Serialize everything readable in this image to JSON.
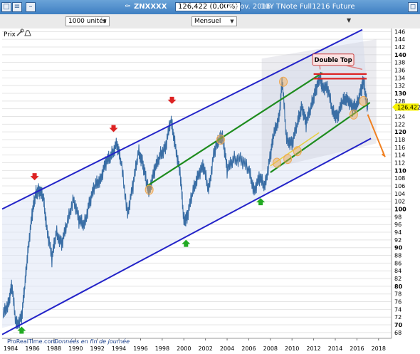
{
  "window": {
    "symbol": "ZNXXXX",
    "price": "126,422 (0,00%)",
    "date": "15 nov. 2016",
    "instrument": "10Y TNote Full1216 Future"
  },
  "toolbar": {
    "units": "1000 unités",
    "period": "Mensuel"
  },
  "chart_data": {
    "type": "line",
    "title": "",
    "legend_label": "Prix",
    "last_price_label": "126,422",
    "annotation": "Double Top",
    "footer": {
      "brand": "ProRealTime.com",
      "note": "Données en fin de journée"
    },
    "xlabel": "",
    "ylabel": "",
    "xlim": [
      1983.2,
      2019.2
    ],
    "ylim": [
      66.5,
      146.8
    ],
    "x_ticks": [
      "1984",
      "1986",
      "1988",
      "1990",
      "1992",
      "1994",
      "1996",
      "1998",
      "2000",
      "2002",
      "2004",
      "2006",
      "2008",
      "2010",
      "2012",
      "2014",
      "2016",
      "2018"
    ],
    "y_ticks": [
      "146",
      "144",
      "142",
      "140",
      "138",
      "136",
      "134",
      "132",
      "130",
      "128",
      "126",
      "124",
      "122",
      "120",
      "118",
      "116",
      "114",
      "112",
      "110",
      "108",
      "106",
      "104",
      "102",
      "100",
      "98",
      "96",
      "94",
      "92",
      "90",
      "88",
      "86",
      "84",
      "82",
      "80",
      "78",
      "76",
      "74",
      "72",
      "70",
      "68"
    ],
    "bold_y_ticks": [
      "140",
      "130",
      "120",
      "110",
      "100",
      "90",
      "80",
      "70"
    ],
    "grid": true,
    "series": [
      {
        "points": [
          [
            1983.3,
            72.5
          ],
          [
            1983.8,
            76
          ],
          [
            1984.1,
            80
          ],
          [
            1984.5,
            70
          ],
          [
            1985.0,
            72
          ],
          [
            1985.3,
            80
          ],
          [
            1985.6,
            90
          ],
          [
            1986.0,
            99
          ],
          [
            1986.3,
            104
          ],
          [
            1986.6,
            105
          ],
          [
            1987.0,
            103
          ],
          [
            1987.3,
            96
          ],
          [
            1987.8,
            87
          ],
          [
            1988.2,
            94
          ],
          [
            1988.7,
            91
          ],
          [
            1989.2,
            96
          ],
          [
            1989.8,
            103
          ],
          [
            1990.3,
            97
          ],
          [
            1990.8,
            96
          ],
          [
            1991.3,
            102
          ],
          [
            1991.8,
            106
          ],
          [
            1992.3,
            108
          ],
          [
            1992.8,
            112
          ],
          [
            1993.3,
            114
          ],
          [
            1993.8,
            117
          ],
          [
            1994.2,
            112
          ],
          [
            1994.8,
            99
          ],
          [
            1995.3,
            106
          ],
          [
            1995.8,
            115
          ],
          [
            1996.2,
            112
          ],
          [
            1996.6,
            106
          ],
          [
            1996.8,
            105
          ],
          [
            1997.3,
            110
          ],
          [
            1997.8,
            114
          ],
          [
            1998.3,
            116
          ],
          [
            1998.8,
            123
          ],
          [
            1999.2,
            117
          ],
          [
            1999.7,
            108
          ],
          [
            2000.0,
            97
          ],
          [
            2000.3,
            98
          ],
          [
            2000.8,
            104
          ],
          [
            2001.3,
            109
          ],
          [
            2001.8,
            111
          ],
          [
            2002.3,
            105
          ],
          [
            2002.8,
            115
          ],
          [
            2003.3,
            118
          ],
          [
            2003.6,
            119
          ],
          [
            2004.0,
            110
          ],
          [
            2004.6,
            113
          ],
          [
            2005.3,
            113
          ],
          [
            2006.0,
            110
          ],
          [
            2006.5,
            105
          ],
          [
            2007.0,
            108
          ],
          [
            2007.5,
            106
          ],
          [
            2008.0,
            114
          ],
          [
            2008.3,
            119
          ],
          [
            2008.8,
            124
          ],
          [
            2009.1,
            133
          ],
          [
            2009.5,
            118
          ],
          [
            2010.0,
            117
          ],
          [
            2010.5,
            122
          ],
          [
            2010.9,
            127
          ],
          [
            2011.3,
            122
          ],
          [
            2011.8,
            127
          ],
          [
            2012.2,
            131
          ],
          [
            2012.6,
            134
          ],
          [
            2012.8,
            132
          ],
          [
            2013.3,
            131
          ],
          [
            2013.8,
            125
          ],
          [
            2014.2,
            124
          ],
          [
            2014.7,
            128
          ],
          [
            2015.1,
            129
          ],
          [
            2015.6,
            126
          ],
          [
            2016.0,
            127
          ],
          [
            2016.4,
            131
          ],
          [
            2016.6,
            133
          ],
          [
            2016.9,
            128
          ],
          [
            2017.0,
            126.4
          ]
        ]
      }
    ],
    "colors": {
      "price": "#3a6ea5",
      "channel": "#2323c8",
      "trend": "#1e8c1e",
      "resistance": "#dd2222",
      "marker_up": "#22aa22",
      "marker_down": "#dd2222",
      "highlight": "#f0a850",
      "forecast": "#f08020",
      "last_price_bg": "#f6f000"
    }
  }
}
